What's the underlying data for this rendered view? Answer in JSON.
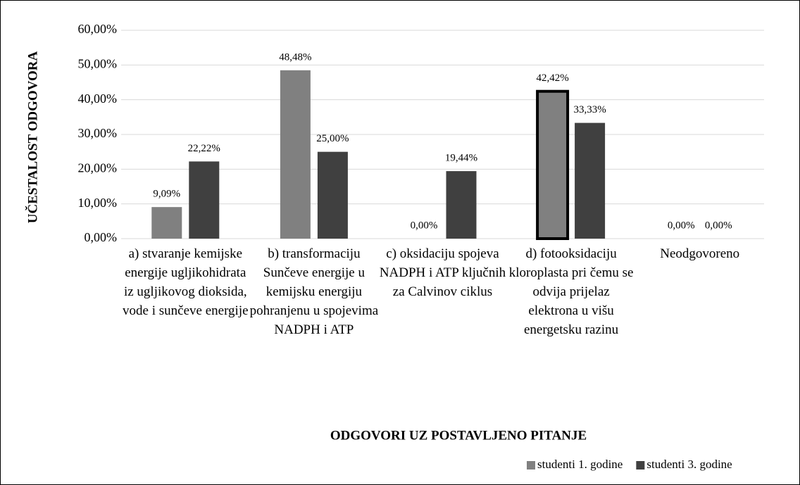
{
  "chart_data": {
    "type": "bar",
    "x_label": "ODGOVORI UZ POSTAVLJENO PITANJE",
    "y_label": "UČESTALOST ODGOVORA",
    "categories": [
      "a) stvaranje kemijske energije ugljikohidrata iz ugljikovog dioksida, vode i sunčeve energije",
      "b) transformaciju Sunčeve energije u kemijsku energiju pohranjenu u spojevima NADPH i ATP",
      "c) oksidaciju spojeva NADPH i ATP ključnih za Calvinov ciklus",
      "d) fotooksidaciju kloroplasta pri čemu se odvija prijelaz elektrona u višu energetsku razinu",
      "Neodgovoreno"
    ],
    "series": [
      {
        "name": "studenti 1. godine",
        "color": "#808080",
        "values": [
          9.09,
          48.48,
          0,
          42.42,
          0
        ],
        "value_labels": [
          "9,09%",
          "48,48%",
          "0,00%",
          "42,42%",
          "0,00%"
        ]
      },
      {
        "name": "studenti 3. godine",
        "color": "#404040",
        "values": [
          22.22,
          25,
          19.44,
          33.33,
          0
        ],
        "value_labels": [
          "22,22%",
          "25,00%",
          "19,44%",
          "33,33%",
          "0,00%"
        ]
      }
    ],
    "ylim": [
      0,
      60
    ],
    "yticks": [
      {
        "value": 0,
        "label": "0,00%"
      },
      {
        "value": 10,
        "label": "10,00%"
      },
      {
        "value": 20,
        "label": "20,00%"
      },
      {
        "value": 30,
        "label": "30,00%"
      },
      {
        "value": 40,
        "label": "40,00%"
      },
      {
        "value": 50,
        "label": "50,00%"
      },
      {
        "value": 60,
        "label": "60,00%"
      }
    ],
    "grid": true,
    "legend": "bottom-right",
    "highlight": {
      "series": 0,
      "category": 3
    }
  }
}
